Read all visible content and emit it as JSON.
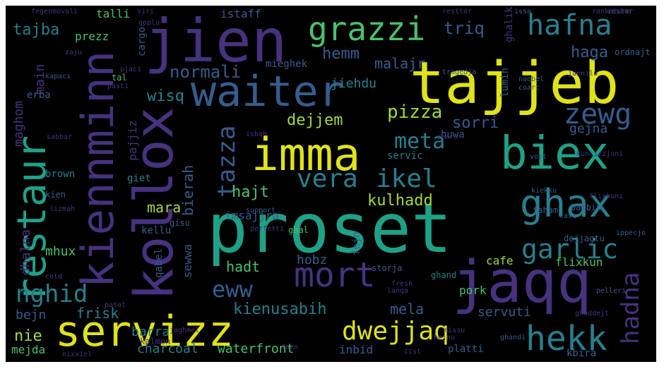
{
  "palette": {
    "background": "#000000",
    "yellow": "#dfe318",
    "yellow_green": "#a0da39",
    "green": "#4ac16d",
    "teal": "#1fa187",
    "blue_teal": "#277f8e",
    "slate_blue": "#365c8d",
    "purple": "#46327e",
    "dark_purple": "#440154"
  },
  "words": [
    {
      "text": "proset",
      "color": "#1fa187"
    },
    {
      "text": "tajjeb",
      "color": "#dfe318"
    },
    {
      "text": "jaqq",
      "color": "#46327e"
    },
    {
      "text": "servizz",
      "color": "#dfe318"
    },
    {
      "text": "jien",
      "color": "#46327e"
    },
    {
      "text": "imma",
      "color": "#dfe318"
    },
    {
      "text": "biex",
      "color": "#1fa187"
    },
    {
      "text": "restaur",
      "color": "#1fa187"
    },
    {
      "text": "waiter",
      "color": "#365c8d"
    },
    {
      "text": "kollox",
      "color": "#46327e"
    },
    {
      "text": "kiennminn",
      "color": "#46327e"
    },
    {
      "text": "grazzi",
      "color": "#4ac16d"
    },
    {
      "text": "mort",
      "color": "#46327e"
    },
    {
      "text": "ghax",
      "color": "#277f8e"
    },
    {
      "text": "hafna",
      "color": "#277f8e"
    },
    {
      "text": "dwejjaq",
      "color": "#dfe318"
    },
    {
      "text": "hekk",
      "color": "#277f8e"
    },
    {
      "text": "vera",
      "color": "#277f8e"
    },
    {
      "text": "ikel",
      "color": "#277f8e"
    },
    {
      "text": "garlic",
      "color": "#277f8e"
    },
    {
      "text": "zewg",
      "color": "#365c8d"
    },
    {
      "text": "meta",
      "color": "#277f8e"
    },
    {
      "text": "eww",
      "color": "#365c8d"
    },
    {
      "text": "hadna",
      "color": "#46327e"
    },
    {
      "text": "nghid",
      "color": "#277f8e"
    },
    {
      "text": "tazza",
      "color": "#365c8d"
    },
    {
      "text": "pizza",
      "color": "#a0da39"
    },
    {
      "text": "dejjem",
      "color": "#a0da39"
    },
    {
      "text": "kienusabih",
      "color": "#277f8e"
    },
    {
      "text": "kulhadd",
      "color": "#a0da39"
    },
    {
      "text": "hajt",
      "color": "#4ac16d"
    },
    {
      "text": "mara",
      "color": "#a0da39"
    },
    {
      "text": "sorri",
      "color": "#365c8d"
    },
    {
      "text": "normali",
      "color": "#365c8d"
    },
    {
      "text": "wisq",
      "color": "#277f8e"
    },
    {
      "text": "tajba",
      "color": "#277f8e"
    },
    {
      "text": "talli",
      "color": "#4ac16d"
    },
    {
      "text": "istaff",
      "color": "#365c8d"
    },
    {
      "text": "hemm",
      "color": "#365c8d"
    },
    {
      "text": "triq",
      "color": "#365c8d"
    },
    {
      "text": "malajr",
      "color": "#365c8d"
    },
    {
      "text": "haga",
      "color": "#365c8d"
    },
    {
      "text": "jiehdu",
      "color": "#277f8e"
    },
    {
      "text": "imsajjra",
      "color": "#365c8d"
    },
    {
      "text": "bierah",
      "color": "#365c8d"
    },
    {
      "text": "gejna",
      "color": "#365c8d"
    },
    {
      "text": "hadt",
      "color": "#4ac16d"
    },
    {
      "text": "hobz",
      "color": "#365c8d"
    },
    {
      "text": "frisk",
      "color": "#277f8e"
    },
    {
      "text": "barra",
      "color": "#277f8e"
    },
    {
      "text": "mela",
      "color": "#365c8d"
    },
    {
      "text": "servuti",
      "color": "#365c8d"
    },
    {
      "text": "nie",
      "color": "#a0da39"
    },
    {
      "text": "bejn",
      "color": "#365c8d"
    },
    {
      "text": "mejda",
      "color": "#4ac16d"
    },
    {
      "text": "charcoal",
      "color": "#277f8e"
    },
    {
      "text": "waterfront",
      "color": "#4ac16d"
    },
    {
      "text": "inbid",
      "color": "#365c8d"
    },
    {
      "text": "platti",
      "color": "#365c8d"
    },
    {
      "text": "kbira",
      "color": "#365c8d"
    },
    {
      "text": "flixkun",
      "color": "#4ac16d"
    },
    {
      "text": "cafe",
      "color": "#a0da39"
    },
    {
      "text": "pork",
      "color": "#4ac16d"
    },
    {
      "text": "mhux",
      "color": "#4ac16d"
    },
    {
      "text": "dhalna",
      "color": "#46327e"
    },
    {
      "text": "kellu",
      "color": "#365c8d"
    },
    {
      "text": "sewwa",
      "color": "#365c8d"
    },
    {
      "text": "brown",
      "color": "#277f8e"
    },
    {
      "text": "giet",
      "color": "#277f8e"
    },
    {
      "text": "maghom",
      "color": "#46327e"
    },
    {
      "text": "main",
      "color": "#46327e"
    },
    {
      "text": "prezz",
      "color": "#4ac16d"
    },
    {
      "text": "cargo",
      "color": "#365c8d"
    },
    {
      "text": "pajjiz",
      "color": "#46327e"
    },
    {
      "text": "mieghek",
      "color": "#365c8d"
    },
    {
      "text": "servic",
      "color": "#277f8e"
    },
    {
      "text": "huwa",
      "color": "#365c8d"
    },
    {
      "text": "lumin",
      "color": "#365c8d"
    },
    {
      "text": "ghalik",
      "color": "#46327e"
    },
    {
      "text": "fejn",
      "color": "#365c8d"
    },
    {
      "text": "faham",
      "color": "#365c8d"
    },
    {
      "text": "ghand",
      "color": "#277f8e"
    },
    {
      "text": "storja",
      "color": "#365c8d"
    },
    {
      "text": "qabel",
      "color": "#365c8d"
    },
    {
      "text": "restor",
      "color": "#365c8d"
    },
    {
      "text": "erba",
      "color": "#365c8d"
    },
    {
      "text": "gisu",
      "color": "#365c8d"
    },
    {
      "text": "kien",
      "color": "#365c8d"
    },
    {
      "text": "ghal",
      "color": "#4ac16d"
    },
    {
      "text": "support",
      "color": "#365c8d"
    },
    {
      "text": "dejjagtu",
      "color": "#365c8d"
    },
    {
      "text": "cave",
      "color": "#365c8d"
    },
    {
      "text": "kiekku",
      "color": "#365c8d"
    },
    {
      "text": "ippecjo",
      "color": "#365c8d"
    },
    {
      "text": "flixkuni",
      "color": "#46327e"
    },
    {
      "text": "ghandi",
      "color": "#365c8d"
    },
    {
      "text": "pelleri",
      "color": "#365c8d"
    },
    {
      "text": "kalmon",
      "color": "#46327e"
    },
    {
      "text": "sabbar",
      "color": "#46327e"
    },
    {
      "text": "isbah",
      "color": "#46327e"
    },
    {
      "text": "fresh",
      "color": "#46327e"
    },
    {
      "text": "ordnajt",
      "color": "#365c8d"
    },
    {
      "text": "tragedja",
      "color": "#365c8d"
    },
    {
      "text": "naqbel",
      "color": "#365c8d"
    },
    {
      "text": "issa",
      "color": "#365c8d"
    },
    {
      "text": "resttor",
      "color": "#46327e"
    },
    {
      "text": "rankature",
      "color": "#46327e"
    },
    {
      "text": "fegenmovali",
      "color": "#46327e"
    },
    {
      "text": "tal",
      "color": "#4ac16d"
    },
    {
      "text": "kapaci",
      "color": "#365c8d"
    },
    {
      "text": "cold",
      "color": "#46327e"
    },
    {
      "text": "pasti",
      "color": "#46327e"
    },
    {
      "text": "lanqa",
      "color": "#46327e"
    },
    {
      "text": "bambin",
      "color": "#365c8d"
    },
    {
      "text": "jaghmel",
      "color": "#46327e"
    },
    {
      "text": "missu",
      "color": "#46327e"
    },
    {
      "text": "bejnu",
      "color": "#46327e"
    },
    {
      "text": "nixxiel",
      "color": "#46327e"
    },
    {
      "text": "forn",
      "color": "#46327e"
    },
    {
      "text": "iist",
      "color": "#46327e"
    },
    {
      "text": "patat",
      "color": "#46327e"
    },
    {
      "text": "vojt",
      "color": "#365c8d"
    },
    {
      "text": "share",
      "color": "#46327e"
    },
    {
      "text": "coarc",
      "color": "#365c8d"
    },
    {
      "text": "viri",
      "color": "#46327e"
    },
    {
      "text": "gpplu",
      "color": "#46327e"
    },
    {
      "text": "zaju",
      "color": "#46327e"
    },
    {
      "text": "pjaci",
      "color": "#46327e"
    },
    {
      "text": "lizmah",
      "color": "#46327e"
    },
    {
      "text": "perfetti",
      "color": "#46327e"
    },
    {
      "text": "kuncizzjoni",
      "color": "#46327e"
    },
    {
      "text": "ghaddejt",
      "color": "#46327e"
    },
    {
      "text": "jannilu",
      "color": "#46327e"
    }
  ]
}
